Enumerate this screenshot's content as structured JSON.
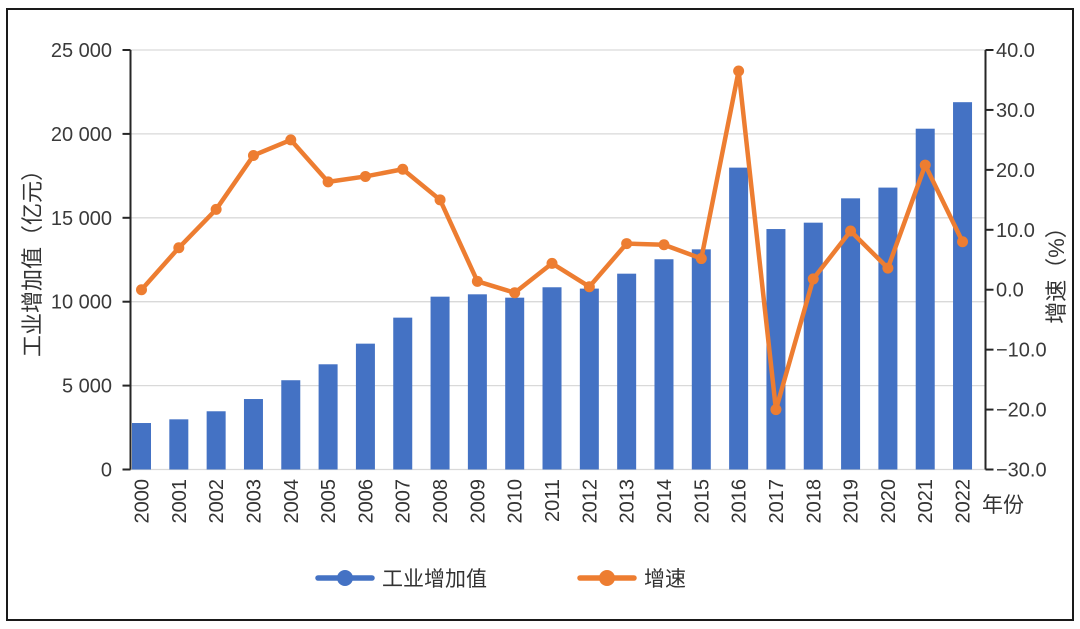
{
  "chart_data": {
    "type": "bar+line combo",
    "categories": [
      "2000",
      "2001",
      "2002",
      "2003",
      "2004",
      "2005",
      "2006",
      "2007",
      "2008",
      "2009",
      "2010",
      "2011",
      "2012",
      "2013",
      "2014",
      "2015",
      "2016",
      "2017",
      "2018",
      "2019",
      "2020",
      "2021",
      "2022"
    ],
    "series": [
      {
        "name": "工业增加值",
        "type": "bar",
        "axis": "left",
        "unit": "亿元",
        "color": "#4472C4",
        "values": [
          2770,
          2990,
          3470,
          4200,
          5320,
          6270,
          7500,
          9050,
          10300,
          10440,
          10240,
          10860,
          10780,
          11670,
          12530,
          13120,
          17990,
          14330,
          14710,
          16160,
          16800,
          20310,
          21890
        ]
      },
      {
        "name": "增速",
        "type": "line",
        "axis": "right",
        "unit": "%",
        "color": "#ED7D31",
        "values": [
          0.0,
          7.0,
          13.4,
          22.4,
          25.0,
          18.0,
          18.9,
          20.1,
          15.0,
          1.4,
          -0.5,
          4.4,
          0.5,
          7.7,
          7.5,
          5.2,
          36.5,
          -20.0,
          1.8,
          9.8,
          3.6,
          20.8,
          8.0
        ]
      }
    ],
    "left_axis": {
      "title": "工业增加值（亿元）",
      "min": 0,
      "max": 25000,
      "step": 5000,
      "tick_labels": [
        "25 000",
        "20 000",
        "15 000",
        "10 000",
        "5 000",
        "0"
      ]
    },
    "right_axis": {
      "title": "增速（%）",
      "min": -30,
      "max": 40,
      "step": 10,
      "tick_labels": [
        "40.0",
        "30.0",
        "20.0",
        "10.0",
        "0.0",
        "−10.0",
        "−20.0",
        "−30.0"
      ]
    },
    "xlabel": "年份",
    "grid": "horizontal",
    "legend_position": "bottom"
  },
  "legend": {
    "items": [
      {
        "label": "工业增加值",
        "color": "#4472C4"
      },
      {
        "label": "增速",
        "color": "#ED7D31"
      }
    ]
  },
  "colors": {
    "bar": "#4472C4",
    "line": "#ED7D31",
    "grid": "#d9d9d9",
    "axis": "#262626",
    "frame": "#1a1a1a"
  }
}
